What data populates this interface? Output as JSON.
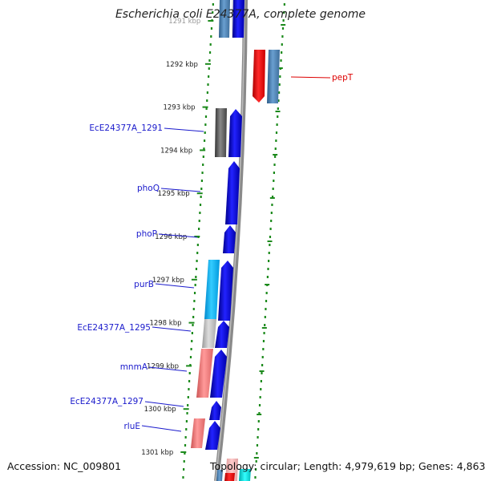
{
  "title": "Escherichia coli E24377A, complete genome",
  "footer": {
    "accession_label": "Accession:",
    "accession_value": "NC_009801",
    "topology_label": "Topology:",
    "topology_value": "circular;",
    "length_label": "Length:",
    "length_value": "4,979,619 bp;",
    "genes_label": "Genes:",
    "genes_value": "4,863"
  },
  "ticks": [
    {
      "label": "1291 kbp",
      "kbp": 1291
    },
    {
      "label": "1292 kbp",
      "kbp": 1292
    },
    {
      "label": "1293 kbp",
      "kbp": 1293
    },
    {
      "label": "1294 kbp",
      "kbp": 1294
    },
    {
      "label": "1295 kbp",
      "kbp": 1295
    },
    {
      "label": "1296 kbp",
      "kbp": 1296
    },
    {
      "label": "1297 kbp",
      "kbp": 1297
    },
    {
      "label": "1298 kbp",
      "kbp": 1298
    },
    {
      "label": "1299 kbp",
      "kbp": 1299
    },
    {
      "label": "1300 kbp",
      "kbp": 1300
    },
    {
      "label": "1301 kbp",
      "kbp": 1301
    }
  ],
  "gene_labels": [
    {
      "name": "pepT",
      "color": "#dd0000",
      "side": "right"
    },
    {
      "name": "EcE24377A_1291",
      "color": "#1a1acc",
      "side": "left"
    },
    {
      "name": "phoQ",
      "color": "#1a1acc",
      "side": "left"
    },
    {
      "name": "phoP",
      "color": "#1a1acc",
      "side": "left"
    },
    {
      "name": "purB",
      "color": "#1a1acc",
      "side": "left"
    },
    {
      "name": "EcE24377A_1295",
      "color": "#1a1acc",
      "side": "left"
    },
    {
      "name": "mnmA",
      "color": "#1a1acc",
      "side": "left"
    },
    {
      "name": "EcE24377A_1297",
      "color": "#1a1acc",
      "side": "left"
    },
    {
      "name": "rluE",
      "color": "#1a1acc",
      "side": "left"
    }
  ],
  "colors": {
    "backbone": "#8a8a8a",
    "ruler": "#1c8a1c",
    "cds_forward": "#0000ee",
    "cds_reverse": "#dd0000",
    "feature_label": "#1a1acc",
    "reverse_label": "#dd0000"
  }
}
